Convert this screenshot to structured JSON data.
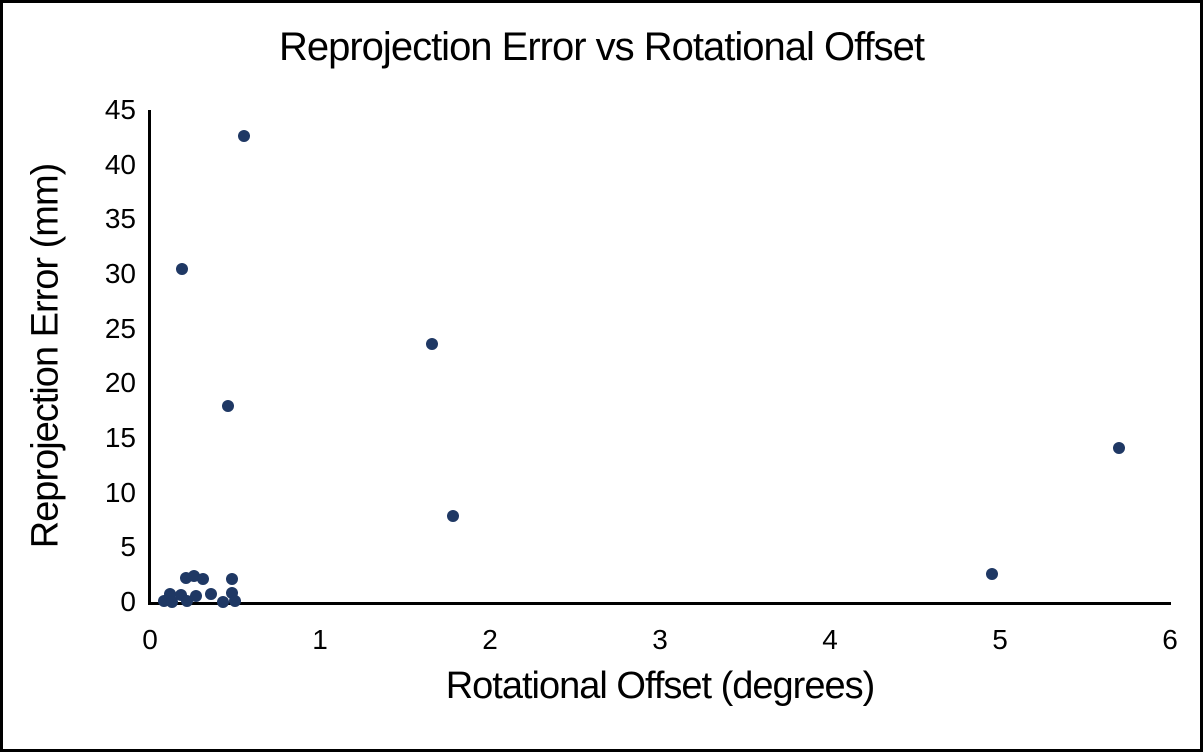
{
  "chart_data": {
    "type": "scatter",
    "title": "Reprojection Error vs Rotational Offset",
    "xlabel": "Rotational Offset (degrees)",
    "ylabel": "Reprojection Error (mm)",
    "xlim": [
      0,
      6
    ],
    "ylim": [
      0,
      45
    ],
    "x_ticks": [
      0,
      1,
      2,
      3,
      4,
      5,
      6
    ],
    "y_ticks": [
      0,
      5,
      10,
      15,
      20,
      25,
      30,
      35,
      40,
      45
    ],
    "grid": false,
    "legend": "none",
    "marker_color": "#1f3864",
    "marker_diameter_px": 12,
    "axis_color": "#000000",
    "frame_border_color": "#000000",
    "points": [
      {
        "x": 0.08,
        "y": 0.1
      },
      {
        "x": 0.12,
        "y": 0.7
      },
      {
        "x": 0.13,
        "y": 0.0
      },
      {
        "x": 0.18,
        "y": 0.6
      },
      {
        "x": 0.19,
        "y": 30.5
      },
      {
        "x": 0.21,
        "y": 2.2
      },
      {
        "x": 0.22,
        "y": 0.1
      },
      {
        "x": 0.26,
        "y": 2.4
      },
      {
        "x": 0.27,
        "y": 0.55
      },
      {
        "x": 0.31,
        "y": 2.1
      },
      {
        "x": 0.36,
        "y": 0.75
      },
      {
        "x": 0.43,
        "y": 0.0
      },
      {
        "x": 0.46,
        "y": 17.9
      },
      {
        "x": 0.48,
        "y": 2.1
      },
      {
        "x": 0.48,
        "y": 0.85
      },
      {
        "x": 0.5,
        "y": 0.05
      },
      {
        "x": 0.55,
        "y": 42.6
      },
      {
        "x": 1.66,
        "y": 23.6
      },
      {
        "x": 1.78,
        "y": 7.9
      },
      {
        "x": 4.95,
        "y": 2.6
      },
      {
        "x": 5.7,
        "y": 14.1
      }
    ]
  }
}
